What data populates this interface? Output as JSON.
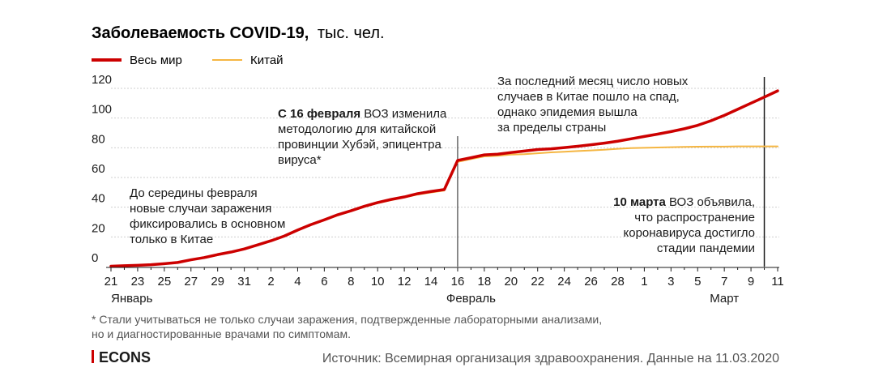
{
  "chart_data": {
    "type": "line",
    "title": "Заболеваемость COVID-19,",
    "unit": "тыс. чел.",
    "series": [
      {
        "name": "Весь мир",
        "color": "#cc0000",
        "values": [
          0.3,
          0.6,
          0.9,
          1.3,
          2.0,
          2.8,
          4.6,
          6.1,
          8.1,
          9.8,
          11.9,
          14.6,
          17.4,
          20.6,
          24.6,
          28.3,
          31.5,
          34.9,
          37.6,
          40.6,
          43.1,
          45.2,
          46.9,
          49.1,
          50.6,
          51.9,
          71.5,
          73.3,
          75.2,
          75.7,
          76.8,
          77.8,
          78.8,
          79.3,
          80.1,
          81.0,
          82.0,
          83.1,
          84.4,
          86.0,
          87.6,
          89.2,
          90.9,
          92.8,
          95.1,
          98.2,
          101.8,
          105.9,
          110.0,
          114.1,
          118.3
        ]
      },
      {
        "name": "Китай",
        "color": "#f5b642",
        "values": [
          0.3,
          0.5,
          0.8,
          1.2,
          1.9,
          2.7,
          4.5,
          5.9,
          7.7,
          9.7,
          11.8,
          14.4,
          17.2,
          20.4,
          24.4,
          28.0,
          31.2,
          34.5,
          37.3,
          40.2,
          42.7,
          44.7,
          46.6,
          48.5,
          49.9,
          51.2,
          70.5,
          72.4,
          74.2,
          74.6,
          75.4,
          75.7,
          76.3,
          76.9,
          77.3,
          77.8,
          78.2,
          78.7,
          79.3,
          79.8,
          80.0,
          80.2,
          80.4,
          80.6,
          80.7,
          80.8,
          80.8,
          80.9,
          80.9,
          80.9,
          80.9
        ]
      }
    ],
    "x_tick_labels": [
      "21",
      "23",
      "25",
      "27",
      "29",
      "31",
      "2",
      "4",
      "6",
      "8",
      "10",
      "12",
      "14",
      "16",
      "18",
      "20",
      "22",
      "24",
      "26",
      "28",
      "1",
      "3",
      "5",
      "7",
      "9",
      "11"
    ],
    "month_labels": [
      {
        "text": "Январь",
        "day_index": 0
      },
      {
        "text": "Февраль",
        "day_index": 27
      },
      {
        "text": "Март",
        "day_index": 46
      }
    ],
    "yticks": [
      0,
      20,
      40,
      60,
      80,
      100,
      120
    ],
    "ylim": [
      0,
      125
    ],
    "grid": true,
    "legend_position": "top-left",
    "markers": [
      {
        "day_index": 26,
        "color": "#1a1a1a"
      },
      {
        "day_index": 49,
        "color": "#1a1a1a"
      }
    ],
    "annotations": [
      {
        "bold": "",
        "lines": [
          "До середины февраля",
          "новые случаи заражения",
          "фиксировались в основном",
          "только в Китае"
        ]
      },
      {
        "bold": "С 16 февраля",
        "lines": [
          " ВОЗ изменила",
          "методологию для китайской",
          "провинции Хубэй, эпицентра",
          "вируса*"
        ]
      },
      {
        "bold": "",
        "lines": [
          "За последний месяц число новых",
          "случаев в Китае пошло на спад,",
          "однако эпидемия вышла",
          "за пределы страны"
        ]
      },
      {
        "bold": "10 марта",
        "lines": [
          " ВОЗ объявила,",
          "что распространение",
          "коронавируса достигло",
          "стадии пандемии"
        ]
      }
    ]
  },
  "footnote": {
    "line1": "* Стали учитываться не только случаи заражения, подтвержденные лабораторными анализами,",
    "line2": "но и диагностированные врачами по симптомам."
  },
  "logo": "ECONS",
  "logo_color": "#cc0000",
  "source": "Источник: Всемирная организация здравоохранения. Данные на 11.03.2020"
}
